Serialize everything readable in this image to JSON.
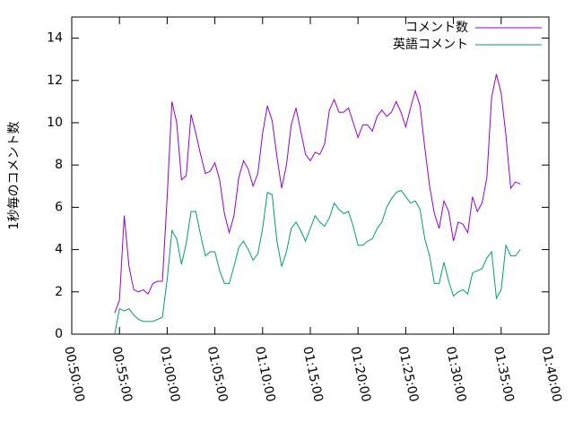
{
  "chart_data": {
    "type": "line",
    "ylabel": "1秒毎のコメント数",
    "x": [
      "00:54:30",
      "00:55:00",
      "00:55:30",
      "00:56:00",
      "00:56:30",
      "00:57:00",
      "00:57:30",
      "00:58:00",
      "00:58:30",
      "00:59:00",
      "00:59:30",
      "01:00:00",
      "01:00:30",
      "01:01:00",
      "01:01:30",
      "01:02:00",
      "01:02:30",
      "01:03:00",
      "01:03:30",
      "01:04:00",
      "01:04:30",
      "01:05:00",
      "01:05:30",
      "01:06:00",
      "01:06:30",
      "01:07:00",
      "01:07:30",
      "01:08:00",
      "01:08:30",
      "01:09:00",
      "01:09:30",
      "01:10:00",
      "01:10:30",
      "01:11:00",
      "01:11:30",
      "01:12:00",
      "01:12:30",
      "01:13:00",
      "01:13:30",
      "01:14:00",
      "01:14:30",
      "01:15:00",
      "01:15:30",
      "01:16:00",
      "01:16:30",
      "01:17:00",
      "01:17:30",
      "01:18:00",
      "01:18:30",
      "01:19:00",
      "01:19:30",
      "01:20:00",
      "01:20:30",
      "01:21:00",
      "01:21:30",
      "01:22:00",
      "01:22:30",
      "01:23:00",
      "01:23:30",
      "01:24:00",
      "01:24:30",
      "01:25:00",
      "01:25:30",
      "01:26:00",
      "01:26:30",
      "01:27:00",
      "01:27:30",
      "01:28:00",
      "01:28:30",
      "01:29:00",
      "01:29:30",
      "01:30:00",
      "01:30:30",
      "01:31:00",
      "01:31:30",
      "01:32:00",
      "01:32:30",
      "01:33:00",
      "01:33:30",
      "01:34:00",
      "01:34:30",
      "01:35:00",
      "01:35:30",
      "01:36:00",
      "01:36:30",
      "01:37:00"
    ],
    "series": [
      {
        "name": "コメント数",
        "color": "#9400d3",
        "values": [
          1.0,
          1.6,
          5.6,
          3.2,
          2.1,
          2.0,
          2.1,
          1.9,
          2.4,
          2.5,
          2.5,
          6.5,
          11.0,
          10.0,
          7.3,
          7.5,
          10.4,
          9.5,
          8.5,
          7.6,
          7.7,
          8.1,
          7.3,
          5.7,
          4.8,
          5.6,
          7.4,
          8.2,
          7.8,
          7.0,
          7.6,
          9.5,
          10.8,
          10.1,
          8.4,
          6.9,
          8.0,
          9.9,
          10.7,
          9.6,
          8.5,
          8.2,
          8.6,
          8.5,
          9.0,
          10.6,
          11.1,
          10.5,
          10.5,
          10.7,
          10.0,
          9.3,
          9.9,
          9.9,
          9.6,
          10.3,
          10.6,
          10.3,
          10.5,
          11.0,
          10.5,
          9.8,
          10.7,
          11.5,
          10.8,
          8.8,
          7.0,
          5.7,
          5.0,
          6.3,
          5.8,
          4.4,
          5.3,
          5.2,
          4.8,
          6.5,
          5.8,
          6.2,
          7.4,
          11.2,
          12.3,
          11.4,
          9.4,
          6.9,
          7.2,
          7.1
        ]
      },
      {
        "name": "英語コメント",
        "color": "#009e73",
        "values": [
          0.0,
          1.2,
          1.1,
          1.2,
          0.9,
          0.7,
          0.6,
          0.6,
          0.6,
          0.7,
          0.8,
          2.6,
          4.9,
          4.5,
          3.3,
          4.3,
          5.8,
          5.8,
          4.7,
          3.7,
          3.9,
          3.9,
          3.0,
          2.4,
          2.4,
          3.2,
          4.1,
          4.4,
          4.0,
          3.5,
          3.8,
          5.0,
          6.7,
          6.6,
          4.4,
          3.2,
          3.9,
          5.0,
          5.3,
          4.9,
          4.4,
          5.0,
          5.6,
          5.3,
          5.1,
          5.5,
          6.2,
          5.9,
          5.7,
          5.8,
          5.1,
          4.2,
          4.2,
          4.4,
          4.5,
          5.0,
          5.3,
          6.0,
          6.4,
          6.7,
          6.8,
          6.5,
          6.2,
          6.3,
          5.9,
          4.5,
          3.7,
          2.4,
          2.4,
          3.4,
          2.5,
          1.8,
          2.0,
          2.1,
          1.9,
          2.9,
          3.0,
          3.1,
          3.6,
          3.9,
          1.7,
          2.1,
          4.2,
          3.7,
          3.7,
          4.0
        ]
      }
    ],
    "xlim": [
      "00:50:00",
      "01:40:00"
    ],
    "xticks": [
      "00:50:00",
      "00:55:00",
      "01:00:00",
      "01:05:00",
      "01:10:00",
      "01:15:00",
      "01:20:00",
      "01:25:00",
      "01:30:00",
      "01:35:00",
      "01:40:00"
    ],
    "ylim": [
      0,
      15
    ],
    "yticks": [
      0,
      2,
      4,
      6,
      8,
      10,
      12,
      14
    ],
    "grid": false,
    "legend": "top-right"
  }
}
